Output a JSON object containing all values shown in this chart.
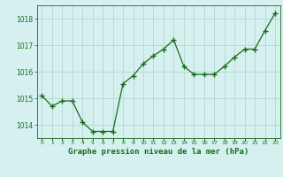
{
  "x": [
    0,
    1,
    2,
    3,
    4,
    5,
    6,
    7,
    8,
    9,
    10,
    11,
    12,
    13,
    14,
    15,
    16,
    17,
    18,
    19,
    20,
    21,
    22,
    23
  ],
  "y": [
    1015.1,
    1014.7,
    1014.9,
    1014.9,
    1014.1,
    1013.75,
    1013.75,
    1013.75,
    1015.55,
    1015.85,
    1016.3,
    1016.6,
    1016.85,
    1017.2,
    1016.2,
    1015.9,
    1015.9,
    1015.9,
    1016.2,
    1016.55,
    1016.85,
    1016.85,
    1017.55,
    1018.2
  ],
  "line_color": "#1a6b1a",
  "marker_color": "#1a6b1a",
  "bg_color": "#d6f0f0",
  "grid_color": "#b0d8d0",
  "xlabel": "Graphe pression niveau de la mer (hPa)",
  "xlabel_color": "#1a6b1a",
  "tick_color": "#1a6b1a",
  "ylim": [
    1013.5,
    1018.5
  ],
  "yticks": [
    1014,
    1015,
    1016,
    1017,
    1018
  ],
  "xlim": [
    -0.5,
    23.5
  ],
  "xticks": [
    0,
    1,
    2,
    3,
    4,
    5,
    6,
    7,
    8,
    9,
    10,
    11,
    12,
    13,
    14,
    15,
    16,
    17,
    18,
    19,
    20,
    21,
    22,
    23
  ],
  "xtick_labels": [
    "0",
    "1",
    "2",
    "3",
    "4",
    "5",
    "6",
    "7",
    "8",
    "9",
    "10",
    "11",
    "12",
    "13",
    "14",
    "15",
    "16",
    "17",
    "18",
    "19",
    "20",
    "21",
    "22",
    "23"
  ]
}
